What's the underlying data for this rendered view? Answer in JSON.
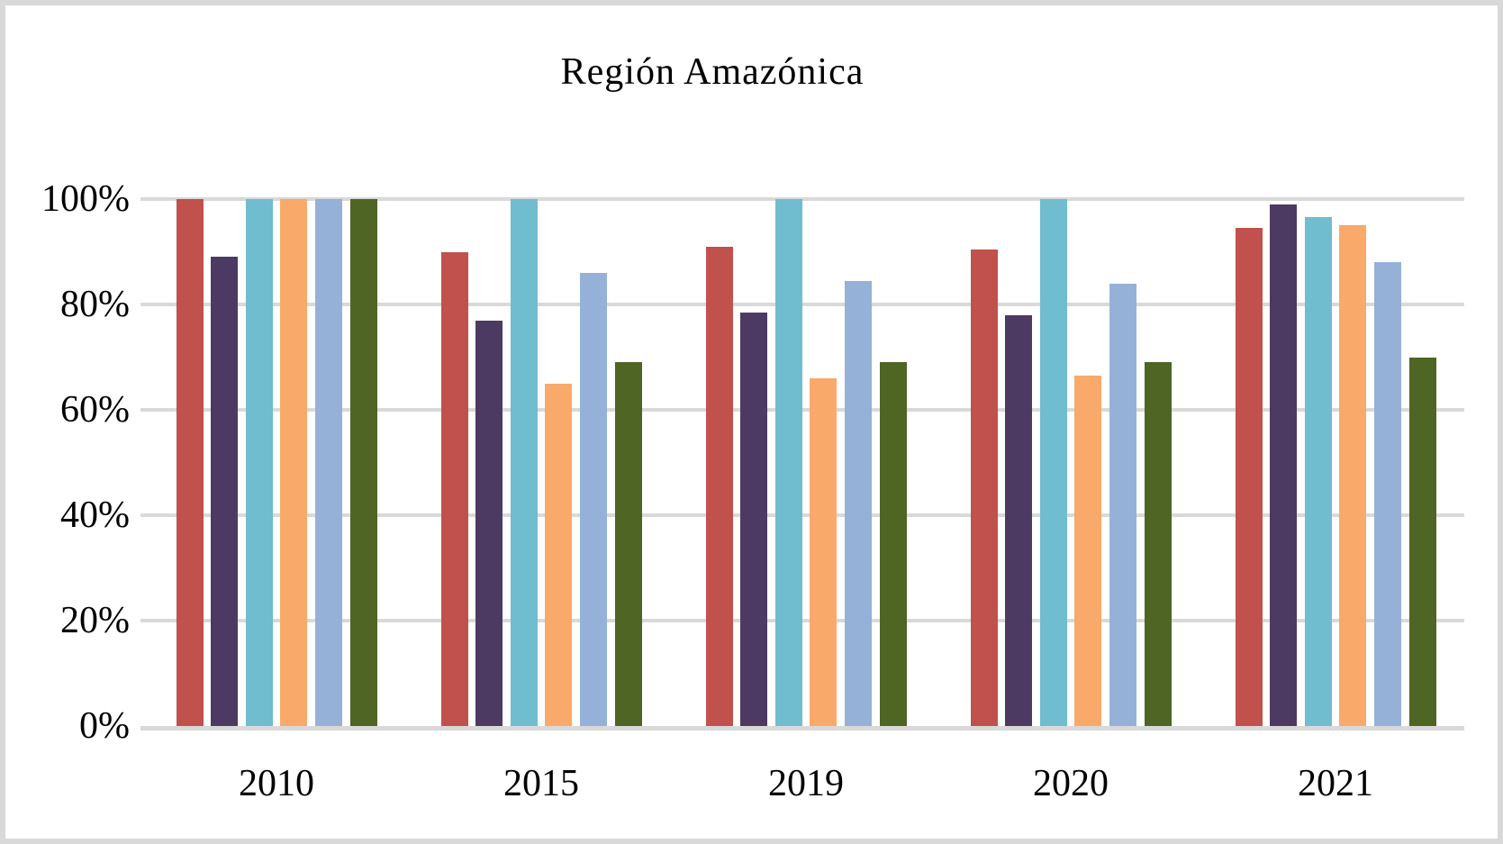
{
  "title": "Región Amazónica",
  "chart_data": {
    "type": "bar",
    "title": "Región Amazónica",
    "categories": [
      "2010",
      "2015",
      "2019",
      "2020",
      "2021"
    ],
    "series": [
      {
        "name": "red",
        "color": "#C0514D",
        "values": [
          100,
          90,
          91,
          90.5,
          94.5
        ]
      },
      {
        "name": "purple",
        "color": "#4C3A63",
        "values": [
          89,
          77,
          78.5,
          78,
          99
        ]
      },
      {
        "name": "cyan",
        "color": "#6FBDCE",
        "values": [
          100,
          100,
          100,
          100,
          96.5
        ]
      },
      {
        "name": "orange",
        "color": "#F9A969",
        "values": [
          100,
          65,
          66,
          66.5,
          95
        ]
      },
      {
        "name": "light-blue",
        "color": "#95B1D8",
        "values": [
          100,
          86,
          84.5,
          84,
          88
        ]
      },
      {
        "name": "olive-green",
        "color": "#4E6523",
        "values": [
          100,
          69,
          69,
          69,
          70
        ]
      }
    ],
    "y_ticks": [
      "0%",
      "20%",
      "40%",
      "60%",
      "80%",
      "100%"
    ],
    "ylim": [
      0,
      100
    ],
    "xlabel": "",
    "ylabel": "",
    "grid": true,
    "legend": false
  },
  "colors": {
    "background": "#FFFFFF",
    "frame": "#D9D9D9",
    "gridline": "#D9D9D9",
    "text": "#000000"
  }
}
